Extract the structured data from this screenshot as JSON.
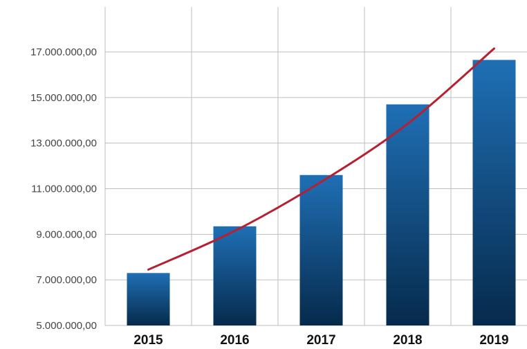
{
  "chart_data": {
    "type": "bar",
    "categories": [
      "2015",
      "2016",
      "2017",
      "2018",
      "2019"
    ],
    "values": [
      7300000,
      9350000,
      11600000,
      14700000,
      16650000
    ],
    "trend": [
      7450000,
      9150000,
      11300000,
      13850000,
      17150000
    ],
    "ylim": [
      5000000,
      18000000
    ],
    "yticks": [
      5000000,
      7000000,
      9000000,
      11000000,
      13000000,
      15000000,
      17000000
    ],
    "ytick_labels": [
      "5.000.000,00",
      "7.000.000,00",
      "9.000.000,00",
      "11.000.000,00",
      "13.000.000,00",
      "15.000.000,00",
      "17.000.000,00"
    ],
    "grid": true,
    "colors": {
      "bar_top": "#1f6fb5",
      "bar_bottom": "#062a4b",
      "trend_line": "#b52033",
      "grid": "#bdbdbd"
    }
  }
}
